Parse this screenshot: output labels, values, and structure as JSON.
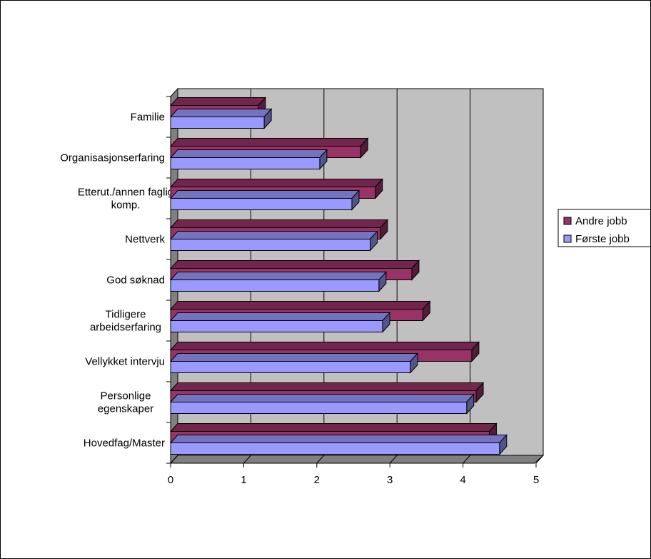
{
  "chart_data": {
    "type": "bar",
    "orientation": "horizontal",
    "three_d": true,
    "categories": [
      [
        "Familie"
      ],
      [
        "Organisasjonserfaring"
      ],
      [
        "Etterut./annen faglig",
        "komp."
      ],
      [
        "Nettverk"
      ],
      [
        "God søknad"
      ],
      [
        "Tidligere",
        "arbeidserfaring"
      ],
      [
        "Vellykket intervju"
      ],
      [
        "Personlige",
        "egenskaper"
      ],
      [
        "Hovedfag/Master"
      ]
    ],
    "series": [
      {
        "name": "Andre jobb",
        "color": "#993366",
        "values": [
          1.2,
          2.6,
          2.8,
          2.87,
          3.3,
          3.45,
          4.12,
          4.18,
          4.36
        ]
      },
      {
        "name": "Første jobb",
        "color": "#9999ff",
        "values": [
          1.28,
          2.04,
          2.48,
          2.73,
          2.85,
          2.9,
          3.28,
          4.05,
          4.5
        ]
      }
    ],
    "xlim": [
      0,
      5
    ],
    "xticks": [
      "0",
      "1",
      "2",
      "3",
      "4",
      "5"
    ],
    "grid": true,
    "legend_position": "right",
    "wall_color": "#c0c0c0",
    "floor_color": "#808080"
  }
}
